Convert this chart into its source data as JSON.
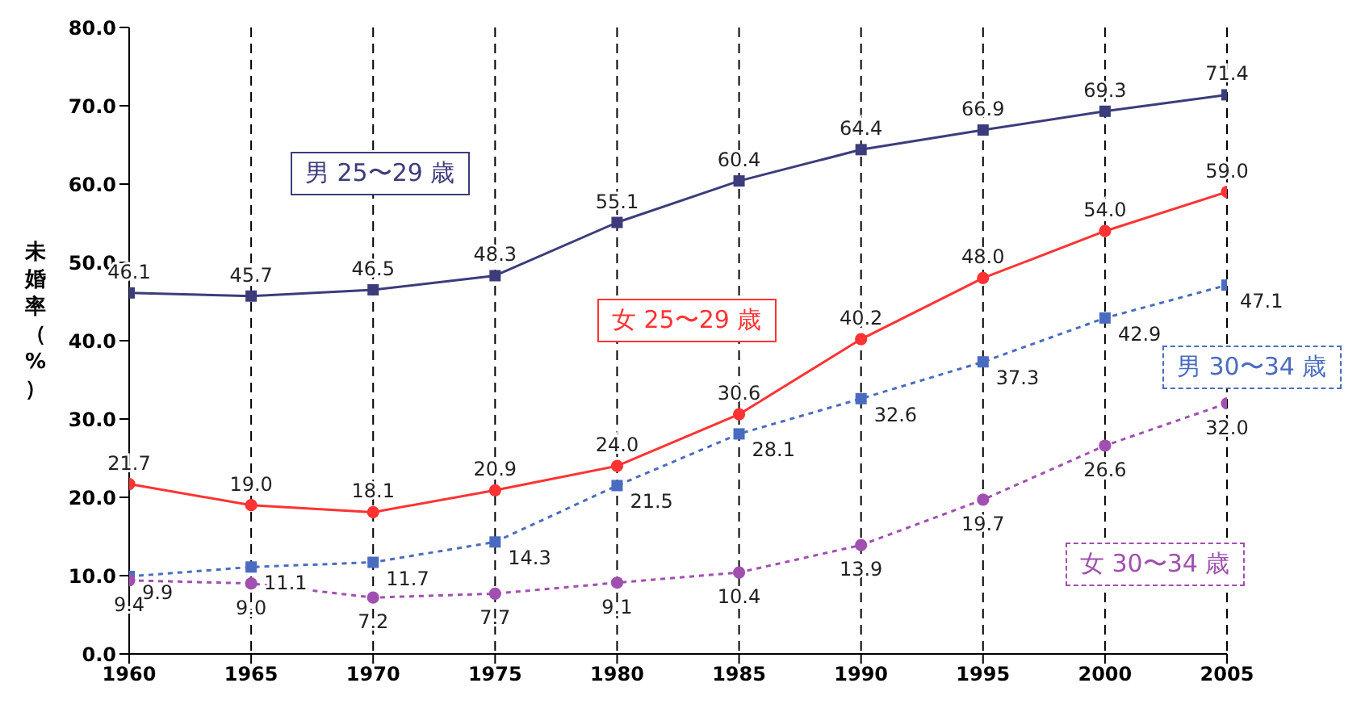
{
  "chart_data": {
    "type": "line",
    "ylabel": "未婚率（%）",
    "x": [
      1960,
      1965,
      1970,
      1975,
      1980,
      1985,
      1990,
      1995,
      2000,
      2005
    ],
    "xlim": [
      1960,
      2005
    ],
    "xticks": [
      1960,
      1965,
      1970,
      1975,
      1980,
      1985,
      1990,
      1995,
      2000,
      2005
    ],
    "ylim": [
      0,
      80
    ],
    "yticks": [
      {
        "value": 0,
        "label": "0.0"
      },
      {
        "value": 10,
        "label": "10.0"
      },
      {
        "value": 20,
        "label": "20.0"
      },
      {
        "value": 30,
        "label": "30.0"
      },
      {
        "value": 40,
        "label": "40.0"
      },
      {
        "value": 50,
        "label": "50.0"
      },
      {
        "value": 60,
        "label": "60.0"
      },
      {
        "value": 70,
        "label": "70.0"
      },
      {
        "value": 80,
        "label": "80.0"
      }
    ],
    "grid": "x",
    "series": [
      {
        "name": "男 25〜29 歳",
        "color": "#3c3c7c",
        "marker": "square",
        "line_style": "solid",
        "values": [
          46.1,
          45.7,
          46.5,
          48.3,
          55.1,
          60.4,
          64.4,
          66.9,
          69.3,
          71.4
        ],
        "value_labels": [
          "46.1",
          "45.7",
          "46.5",
          "48.3",
          "55.1",
          "60.4",
          "64.4",
          "66.9",
          "69.3",
          "71.4"
        ]
      },
      {
        "name": "女 25〜29 歳",
        "color": "#ff3333",
        "marker": "circle",
        "line_style": "solid",
        "values": [
          21.7,
          19.0,
          18.1,
          20.9,
          24.0,
          30.6,
          40.2,
          48.0,
          54.0,
          59.0
        ],
        "value_labels": [
          "21.7",
          "19.0",
          "18.1",
          "20.9",
          "24.0",
          "30.6",
          "40.2",
          "48.0",
          "54.0",
          "59.0"
        ]
      },
      {
        "name": "男 30〜34 歳",
        "color": "#4a6cc0",
        "marker": "square",
        "line_style": "dotted",
        "values": [
          9.9,
          11.1,
          11.7,
          14.3,
          21.5,
          28.1,
          32.6,
          37.3,
          42.9,
          47.1
        ],
        "value_labels": [
          "9.9",
          "11.1",
          "11.7",
          "14.3",
          "21.5",
          "28.1",
          "32.6",
          "37.3",
          "42.9",
          "47.1"
        ]
      },
      {
        "name": "女 30〜34 歳",
        "color": "#a050b0",
        "marker": "circle",
        "line_style": "dotted",
        "values": [
          9.4,
          9.0,
          7.2,
          7.7,
          9.1,
          10.4,
          13.9,
          19.7,
          26.6,
          32.0
        ],
        "value_labels": [
          "9.4",
          "9.0",
          "7.2",
          "7.7",
          "9.1",
          "10.4",
          "13.9",
          "19.7",
          "26.6",
          "32.0"
        ]
      }
    ]
  }
}
